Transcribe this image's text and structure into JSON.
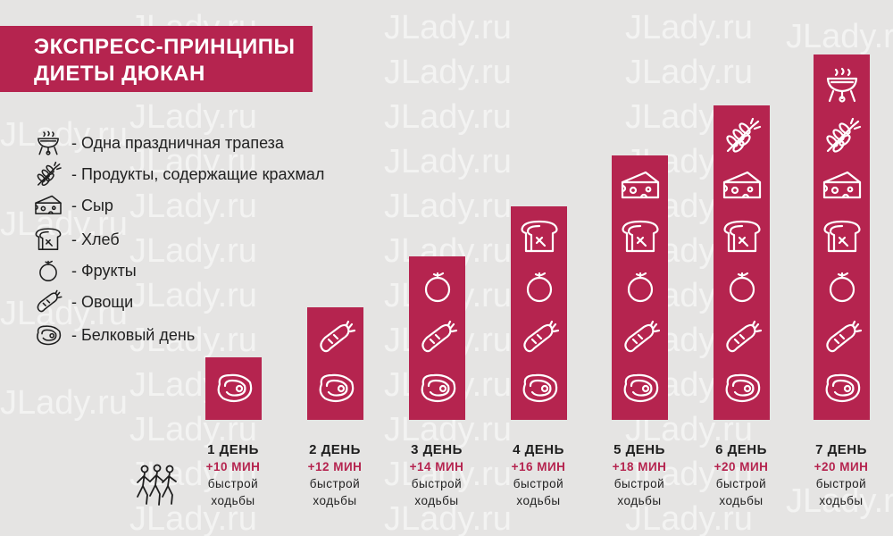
{
  "watermark": "JLady.ru",
  "title": {
    "line1": "ЭКСПРЕСС-ПРИНЦИПЫ",
    "line2": "ДИЕТЫ ДЮКАН"
  },
  "colors": {
    "accent": "#b5244f",
    "background": "#e5e4e3",
    "icon_light": "#ffffff",
    "icon_dark": "#1e1e1e"
  },
  "legend": [
    {
      "icon": "grill-icon",
      "label": "- Одна праздничная трапеза"
    },
    {
      "icon": "wheat-icon",
      "label": "- Продукты, содержащие крахмал"
    },
    {
      "icon": "cheese-icon",
      "label": "- Сыр"
    },
    {
      "icon": "bread-icon",
      "label": "- Хлеб"
    },
    {
      "icon": "fruit-icon",
      "label": "- Фрукты"
    },
    {
      "icon": "vegetable-icon",
      "label": "- Овощи"
    },
    {
      "icon": "steak-icon",
      "label": "- Белковый день"
    }
  ],
  "chart_data": {
    "type": "bar",
    "title": "ЭКСПРЕСС-ПРИНЦИПЫ ДИЕТЫ ДЮКАН",
    "categories": [
      "1 ДЕНЬ",
      "2 ДЕНЬ",
      "3 ДЕНЬ",
      "4 ДЕНЬ",
      "5 ДЕНЬ",
      "6 ДЕНЬ",
      "7 ДЕНЬ"
    ],
    "values": [
      1,
      2,
      3,
      4,
      5,
      6,
      7
    ],
    "stack_order": [
      "steak-icon",
      "vegetable-icon",
      "fruit-icon",
      "bread-icon",
      "cheese-icon",
      "wheat-icon",
      "grill-icon"
    ],
    "walking": [
      "+10 МИН",
      "+12 МИН",
      "+14 МИН",
      "+16 МИН",
      "+18 МИН",
      "+20 МИН",
      "+20 МИН"
    ],
    "walking_text_line1": "быстрой",
    "walking_text_line2": "ходьбы",
    "xlabel": "",
    "ylabel": "",
    "ylim": [
      0,
      7
    ]
  }
}
